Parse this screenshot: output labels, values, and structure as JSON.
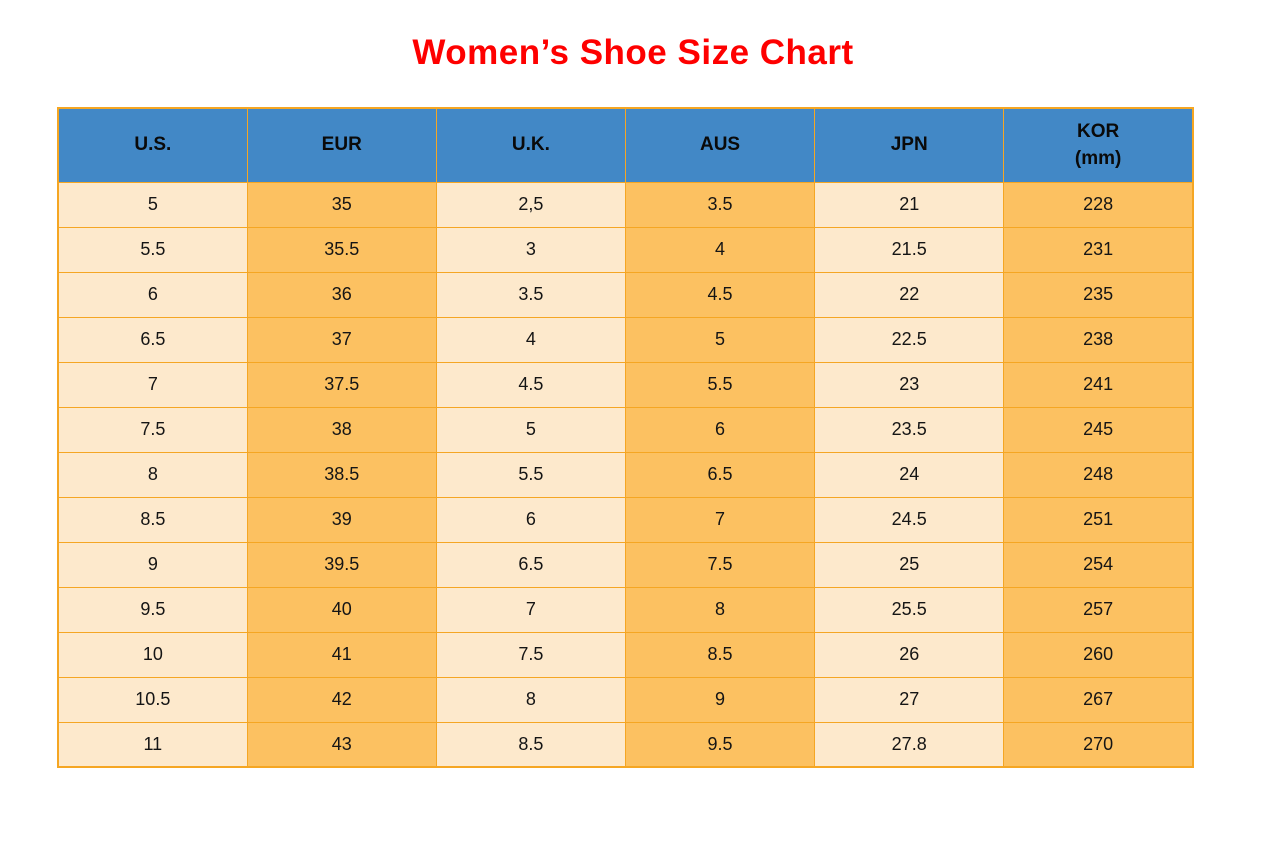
{
  "title": "Women’s Shoe Size Chart",
  "colors": {
    "title_text": "#fe0000",
    "header_bg": "#4288c6",
    "cell_cream": "#fde9cc",
    "cell_orange": "#fcc161",
    "border": "#f5a623",
    "body_text": "#151515",
    "page_bg": "#ffffff"
  },
  "table": {
    "headers": [
      [
        "U.S."
      ],
      [
        "EUR"
      ],
      [
        "U.K."
      ],
      [
        "AUS"
      ],
      [
        "JPN"
      ],
      [
        "KOR",
        "(mm)"
      ]
    ]
  },
  "chart_data": {
    "type": "table",
    "title": "Women’s Shoe Size Chart",
    "columns": [
      "U.S.",
      "EUR",
      "U.K.",
      "AUS",
      "JPN",
      "KOR (mm)"
    ],
    "rows": [
      [
        "5",
        "35",
        "2,5",
        "3.5",
        "21",
        "228"
      ],
      [
        "5.5",
        "35.5",
        "3",
        "4",
        "21.5",
        "231"
      ],
      [
        "6",
        "36",
        "3.5",
        "4.5",
        "22",
        "235"
      ],
      [
        "6.5",
        "37",
        "4",
        "5",
        "22.5",
        "238"
      ],
      [
        "7",
        "37.5",
        "4.5",
        "5.5",
        "23",
        "241"
      ],
      [
        "7.5",
        "38",
        "5",
        "6",
        "23.5",
        "245"
      ],
      [
        "8",
        "38.5",
        "5.5",
        "6.5",
        "24",
        "248"
      ],
      [
        "8.5",
        "39",
        "6",
        "7",
        "24.5",
        "251"
      ],
      [
        "9",
        "39.5",
        "6.5",
        "7.5",
        "25",
        "254"
      ],
      [
        "9.5",
        "40",
        "7",
        "8",
        "25.5",
        "257"
      ],
      [
        "10",
        "41",
        "7.5",
        "8.5",
        "26",
        "260"
      ],
      [
        "10.5",
        "42",
        "8",
        "9",
        "27",
        "267"
      ],
      [
        "11",
        "43",
        "8.5",
        "9.5",
        "27.8",
        "270"
      ]
    ]
  }
}
